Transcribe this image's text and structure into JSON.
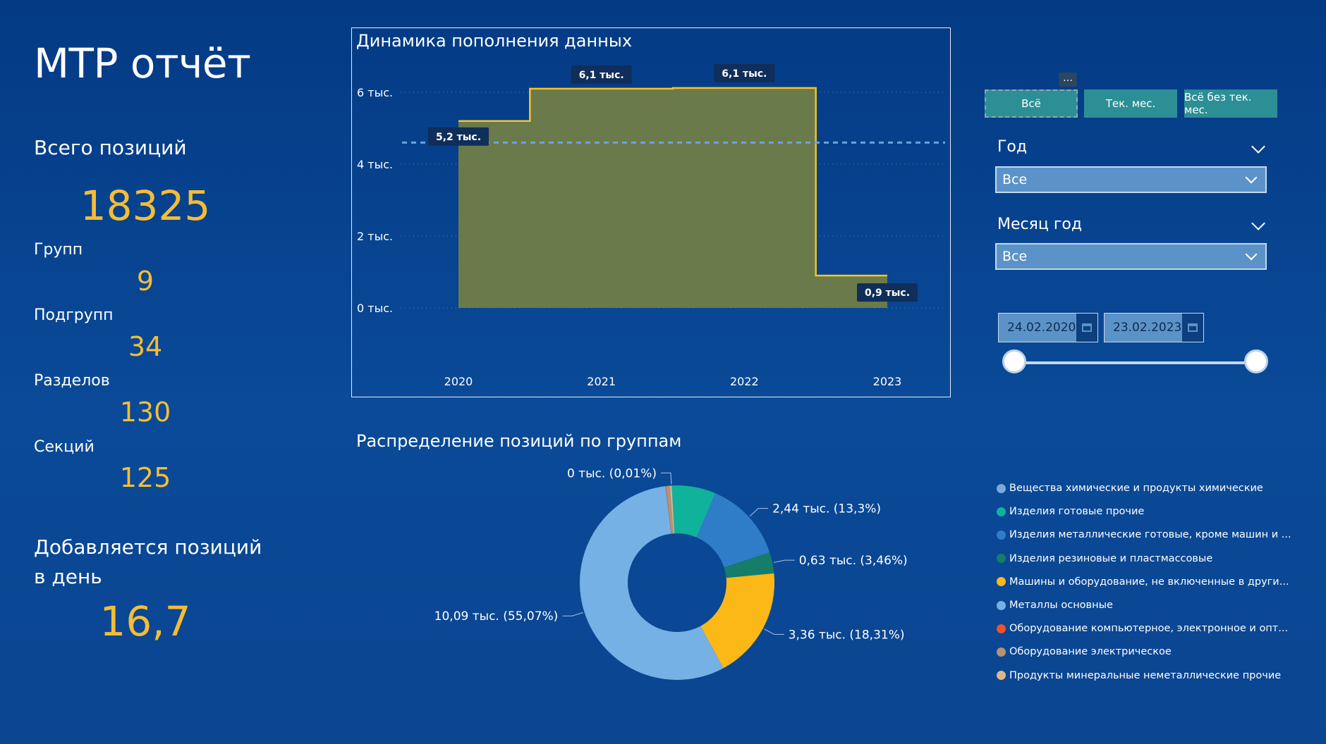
{
  "title": "МТР отчёт",
  "kpis": {
    "total_label": "Всего позиций",
    "total_value": "18325",
    "groups_label": "Групп",
    "groups_value": "9",
    "subgroups_label": "Подгрупп",
    "subgroups_value": "34",
    "sections_label": "Разделов",
    "sections_value": "130",
    "sectors_label": "Секций",
    "sectors_value": "125",
    "daily_label_1": "Добавляется позиций",
    "daily_label_2": "в день",
    "daily_value": "16,7"
  },
  "period_buttons": [
    "Всё",
    "Тек. мес.",
    "Всё без тек. мес."
  ],
  "more_icon": "…",
  "filters": {
    "year_label": "Год",
    "year_value": "Все",
    "month_label": "Месяц год",
    "month_value": "Все",
    "date_from": "24.02.2020",
    "date_to": "23.02.2023"
  },
  "colors": {
    "accent_yellow": "#f5bd36",
    "area_fill": "#6b7a4a",
    "line": "#f7c325"
  },
  "chart_data": [
    {
      "type": "area",
      "title": "Динамика пополнения данных",
      "categories": [
        "2020",
        "2021",
        "2022",
        "2023"
      ],
      "y_ticks": [
        "0 тыс.",
        "2 тыс.",
        "4 тыс.",
        "6 тыс."
      ],
      "ylim": [
        0,
        6.6
      ],
      "points": [
        {
          "x": 2020.0,
          "y": 5.2
        },
        {
          "x": 2020.5,
          "y": 5.2
        },
        {
          "x": 2020.5,
          "y": 6.1
        },
        {
          "x": 2021.5,
          "y": 6.1
        },
        {
          "x": 2021.5,
          "y": 6.12
        },
        {
          "x": 2022.5,
          "y": 6.12
        },
        {
          "x": 2022.5,
          "y": 0.9
        },
        {
          "x": 2023.0,
          "y": 0.9
        }
      ],
      "data_labels": [
        {
          "x": 2020,
          "y": 5.2,
          "text": "5,2 тыс."
        },
        {
          "x": 2021,
          "y": 6.1,
          "text": "6,1 тыс."
        },
        {
          "x": 2022,
          "y": 6.1,
          "text": "6,1 тыс."
        },
        {
          "x": 2023,
          "y": 0.9,
          "text": "0,9 тыс."
        }
      ],
      "average_line": 4.6,
      "grid": true
    },
    {
      "type": "pie",
      "title": "Распределение позиций по группам",
      "donut": true,
      "slices": [
        {
          "name": "Вещества химические и продукты химические",
          "value": 0.002,
          "label": "0 тыс. (0,01%)",
          "color": "#7ea7e0"
        },
        {
          "name": "Изделия готовые прочие",
          "value": 1.32,
          "label": "",
          "color": "#10b29c"
        },
        {
          "name": "Изделия металлические готовые, кроме машин и ...",
          "value": 2.44,
          "label": "2,44 тыс. (13,3%)",
          "color": "#2f7dc8"
        },
        {
          "name": "Изделия резиновые и пластмассовые",
          "value": 0.63,
          "label": "0,63 тыс. (3,46%)",
          "color": "#157d6a"
        },
        {
          "name": "Машины и оборудование, не включенные в други...",
          "value": 3.36,
          "label": "3,36 тыс. (18,31%)",
          "color": "#fbb817"
        },
        {
          "name": "Металлы основные",
          "value": 10.09,
          "label": "10,09 тыс. (55,07%)",
          "color": "#75b1e4"
        },
        {
          "name": "Оборудование компьютерное, электронное и опт...",
          "value": 0.01,
          "label": "",
          "color": "#f0502d"
        },
        {
          "name": "Оборудование электрическое",
          "value": 0.12,
          "label": "",
          "color": "#b69274"
        },
        {
          "name": "Продукты минеральные неметаллические прочие",
          "value": 0.05,
          "label": "",
          "color": "#d9b98c"
        }
      ],
      "legend_position": "right"
    }
  ]
}
